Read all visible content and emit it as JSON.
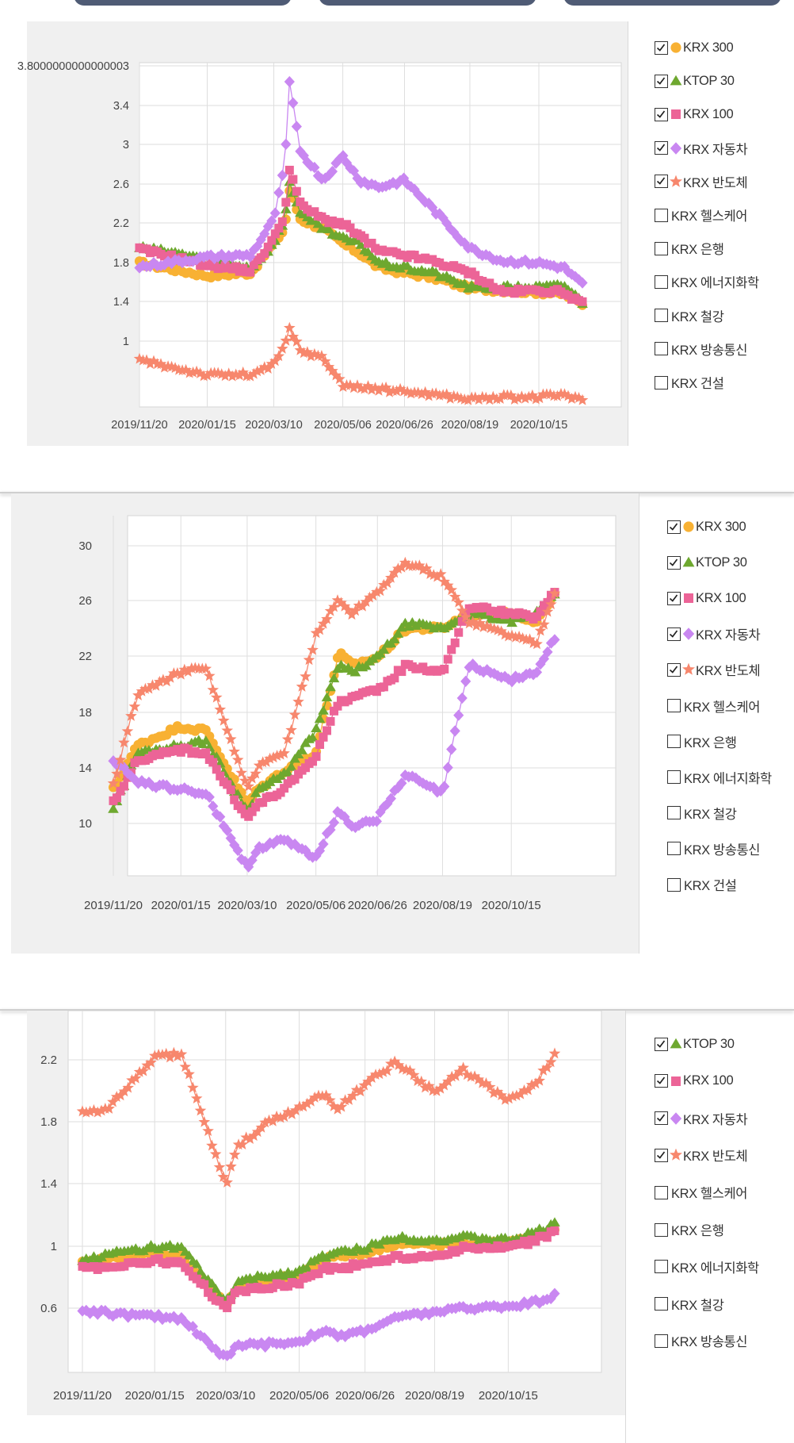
{
  "x_labels": [
    "2019/11/20",
    "2020/01/15",
    "2020/03/10",
    "2020/05/06",
    "2020/06/26",
    "2020/08/19",
    "2020/10/15"
  ],
  "legend_names": [
    "KRX 300",
    "KTOP 30",
    "KRX 100",
    "KRX 자동차",
    "KRX 반도체",
    "KRX 헬스케어",
    "KRX 은행",
    "KRX 에너지화학",
    "KRX 철강",
    "KRX 방송통신",
    "KRX 건설"
  ],
  "colors": {
    "KRX 300": "#f8b133",
    "KTOP 30": "#6ea82f",
    "KRX 100": "#ec6497",
    "KRX 자동차": "#c987f1",
    "KRX 반도체": "#f7876d"
  },
  "markers": {
    "KRX 300": "circle",
    "KTOP 30": "triangle",
    "KRX 100": "square",
    "KRX 자동차": "diamond",
    "KRX 반도체": "star"
  },
  "chart_data": [
    {
      "type": "line",
      "y_tick_labels": [
        "3.8000000000000003",
        "3.4",
        "3",
        "2.6",
        "2.2",
        "1.8",
        "1.4",
        "1"
      ],
      "ylim": [
        0.62,
        4.16
      ],
      "legend": {
        "checked": [
          "KRX 300",
          "KTOP 30",
          "KRX 100",
          "KRX 자동차",
          "KRX 반도체"
        ],
        "unchecked": [
          "KRX 헬스케어",
          "KRX 은행",
          "KRX 에너지화학",
          "KRX 철강",
          "KRX 방송통신",
          "KRX 건설"
        ]
      },
      "x": [
        "2019/11/20",
        "2020/01/15",
        "2020/02/20",
        "2020/03/10",
        "2020/03/19",
        "2020/03/23",
        "2020/04/01",
        "2020/04/20",
        "2020/05/06",
        "2020/05/20",
        "2020/06/05",
        "2020/06/26",
        "2020/07/20",
        "2020/08/19",
        "2020/09/15",
        "2020/10/15",
        "2020/11/05",
        "2020/11/20"
      ],
      "series": [
        {
          "name": "KRX 300",
          "values": [
            2.1,
            1.97,
            2.0,
            2.3,
            2.45,
            2.85,
            2.55,
            2.45,
            2.3,
            2.2,
            2.05,
            2.0,
            1.95,
            1.84,
            1.82,
            1.8,
            1.78,
            1.68
          ]
        },
        {
          "name": "KTOP 30",
          "values": [
            2.26,
            2.15,
            2.05,
            2.3,
            2.55,
            2.95,
            2.6,
            2.45,
            2.35,
            2.3,
            2.1,
            2.05,
            2.0,
            1.85,
            1.85,
            1.85,
            1.87,
            1.7
          ]
        },
        {
          "name": "KRX 100",
          "values": [
            2.24,
            2.08,
            2.02,
            2.35,
            2.6,
            3.08,
            2.7,
            2.55,
            2.5,
            2.38,
            2.22,
            2.18,
            2.12,
            2.0,
            1.8,
            1.82,
            1.8,
            1.68
          ]
        },
        {
          "name": "KRX 자동차",
          "values": [
            2.06,
            2.16,
            2.18,
            2.55,
            3.1,
            3.95,
            3.25,
            2.95,
            3.2,
            2.95,
            2.88,
            2.95,
            2.65,
            2.25,
            2.12,
            2.1,
            2.05,
            1.88
          ]
        },
        {
          "name": "KRX 반도체",
          "values": [
            1.1,
            0.95,
            0.95,
            1.05,
            1.25,
            1.42,
            1.2,
            1.12,
            0.85,
            0.82,
            0.8,
            0.78,
            0.75,
            0.7,
            0.72,
            0.72,
            0.75,
            0.68
          ]
        }
      ]
    },
    {
      "type": "line",
      "y_tick_labels": [
        "30",
        "26",
        "22",
        "18",
        "14",
        "10"
      ],
      "ylim": [
        7.6,
        32.2
      ],
      "legend": {
        "checked": [
          "KRX 300",
          "KTOP 30",
          "KRX 100",
          "KRX 자동차",
          "KRX 반도체"
        ],
        "unchecked": [
          "KRX 헬스케어",
          "KRX 은행",
          "KRX 에너지화학",
          "KRX 철강",
          "KRX 방송통신",
          "KRX 건설"
        ]
      },
      "x": [
        "2019/11/20",
        "2019/12/10",
        "2020/01/15",
        "2020/02/05",
        "2020/03/10",
        "2020/03/19",
        "2020/04/10",
        "2020/05/06",
        "2020/05/25",
        "2020/06/05",
        "2020/06/26",
        "2020/07/20",
        "2020/08/19",
        "2020/09/10",
        "2020/10/15",
        "2020/11/05",
        "2020/11/20"
      ],
      "series": [
        {
          "name": "KRX 300",
          "values": [
            13.5,
            16.5,
            17.8,
            17.5,
            12.5,
            13.5,
            14.8,
            16.0,
            22.8,
            22.0,
            22.5,
            24.5,
            24.5,
            25.5,
            25.5,
            25.0,
            26.8
          ]
        },
        {
          "name": "KTOP 30",
          "values": [
            12.2,
            16.0,
            16.5,
            16.8,
            12.0,
            13.5,
            14.5,
            17.5,
            22.0,
            21.5,
            22.5,
            24.8,
            24.5,
            25.5,
            25.0,
            25.5,
            26.8
          ]
        },
        {
          "name": "KRX 100",
          "values": [
            12.6,
            15.5,
            16.2,
            16.0,
            11.5,
            12.5,
            13.5,
            15.8,
            19.5,
            19.8,
            20.2,
            22.0,
            21.5,
            26.0,
            25.5,
            25.2,
            27.0
          ]
        },
        {
          "name": "KRX 자동차",
          "values": [
            15.5,
            14.0,
            13.5,
            13.2,
            8.2,
            9.5,
            10.0,
            8.9,
            12.0,
            11.0,
            11.5,
            14.5,
            13.2,
            22.0,
            21.0,
            21.5,
            23.8
          ]
        },
        {
          "name": "KRX 반도체",
          "values": [
            13.8,
            20.0,
            21.5,
            21.8,
            13.5,
            15.0,
            16.0,
            24.0,
            26.5,
            25.5,
            27.0,
            29.0,
            28.0,
            25.0,
            24.0,
            23.5,
            27.0
          ]
        }
      ]
    },
    {
      "type": "line",
      "y_tick_labels": [
        "2.2",
        "1.8",
        "1.4",
        "1",
        "0.6"
      ],
      "ylim": [
        0.25,
        2.58
      ],
      "legend": {
        "checked": [
          "KTOP 30",
          "KRX 100",
          "KRX 자동차",
          "KRX 반도체"
        ],
        "unchecked": [
          "KRX 헬스케어",
          "KRX 은행",
          "KRX 에너지화학",
          "KRX 철강",
          "KRX 방송통신"
        ]
      },
      "x": [
        "2019/11/20",
        "2019/12/10",
        "2020/01/15",
        "2020/02/05",
        "2020/03/10",
        "2020/03/19",
        "2020/04/10",
        "2020/05/06",
        "2020/05/25",
        "2020/06/05",
        "2020/06/26",
        "2020/07/20",
        "2020/08/19",
        "2020/09/10",
        "2020/10/15",
        "2020/11/05",
        "2020/11/20"
      ],
      "series": [
        {
          "name": "KRX 300",
          "values": [
            0.95,
            0.98,
            1.02,
            1.0,
            0.68,
            0.8,
            0.84,
            0.87,
            0.98,
            1.0,
            1.02,
            1.08,
            1.07,
            1.08,
            1.08,
            1.12,
            1.18
          ]
        },
        {
          "name": "KTOP 30",
          "values": [
            0.97,
            1.01,
            1.06,
            1.05,
            0.7,
            0.83,
            0.87,
            0.9,
            1.0,
            1.02,
            1.05,
            1.12,
            1.1,
            1.12,
            1.1,
            1.15,
            1.2
          ]
        },
        {
          "name": "KRX 100",
          "values": [
            0.92,
            0.93,
            0.97,
            0.95,
            0.66,
            0.77,
            0.8,
            0.83,
            0.92,
            0.92,
            0.95,
            0.99,
            1.0,
            1.05,
            1.05,
            1.1,
            1.15
          ]
        },
        {
          "name": "KRX 자동차",
          "values": [
            0.65,
            0.63,
            0.61,
            0.6,
            0.34,
            0.42,
            0.43,
            0.45,
            0.52,
            0.48,
            0.52,
            0.6,
            0.64,
            0.66,
            0.68,
            0.7,
            0.75
          ]
        },
        {
          "name": "KRX 반도체",
          "values": [
            1.92,
            1.95,
            2.28,
            2.3,
            1.45,
            1.7,
            1.85,
            1.95,
            2.05,
            1.95,
            2.1,
            2.25,
            2.05,
            2.2,
            2.0,
            2.1,
            2.3
          ]
        }
      ]
    }
  ]
}
